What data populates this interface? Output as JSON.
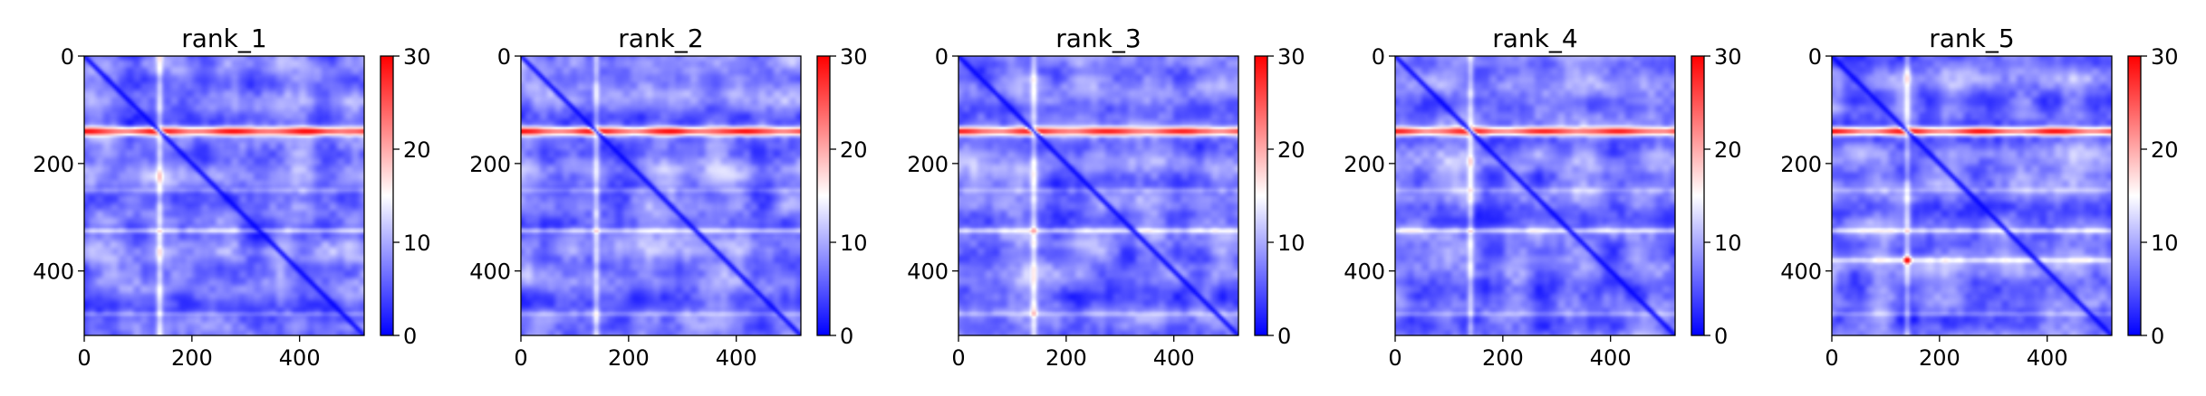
{
  "chart_data": [
    {
      "type": "heatmap",
      "title": "rank_1",
      "x_ticks": [
        0,
        200,
        400
      ],
      "y_ticks": [
        0,
        200,
        400
      ],
      "xlim": [
        0,
        520
      ],
      "ylim": [
        520,
        0
      ],
      "colorbar": {
        "cmap": "bwr",
        "vmin": 0,
        "vmax": 30,
        "ticks": [
          0,
          10,
          20,
          30
        ]
      },
      "features": {
        "diagonal": "low",
        "red_band_row": 140,
        "red_band_peak": 30,
        "mid_row": 325,
        "white_column": 140,
        "base_level": 7,
        "speckle_row": null
      }
    },
    {
      "type": "heatmap",
      "title": "rank_2",
      "x_ticks": [
        0,
        200,
        400
      ],
      "y_ticks": [
        0,
        200,
        400
      ],
      "xlim": [
        0,
        520
      ],
      "ylim": [
        520,
        0
      ],
      "colorbar": {
        "cmap": "bwr",
        "vmin": 0,
        "vmax": 30,
        "ticks": [
          0,
          10,
          20,
          30
        ]
      },
      "features": {
        "diagonal": "low",
        "red_band_row": 140,
        "red_band_peak": 30,
        "mid_row": 325,
        "white_column": 140,
        "base_level": 7,
        "speckle_row": null
      }
    },
    {
      "type": "heatmap",
      "title": "rank_3",
      "x_ticks": [
        0,
        200,
        400
      ],
      "y_ticks": [
        0,
        200,
        400
      ],
      "xlim": [
        0,
        520
      ],
      "ylim": [
        520,
        0
      ],
      "colorbar": {
        "cmap": "bwr",
        "vmin": 0,
        "vmax": 30,
        "ticks": [
          0,
          10,
          20,
          30
        ]
      },
      "features": {
        "diagonal": "low",
        "red_band_row": 140,
        "red_band_peak": 29,
        "mid_row": 325,
        "white_column": 140,
        "base_level": 7,
        "speckle_row": null
      }
    },
    {
      "type": "heatmap",
      "title": "rank_4",
      "x_ticks": [
        0,
        200,
        400
      ],
      "y_ticks": [
        0,
        200,
        400
      ],
      "xlim": [
        0,
        520
      ],
      "ylim": [
        520,
        0
      ],
      "colorbar": {
        "cmap": "bwr",
        "vmin": 0,
        "vmax": 30,
        "ticks": [
          0,
          10,
          20,
          30
        ]
      },
      "features": {
        "diagonal": "low",
        "red_band_row": 140,
        "red_band_peak": 29,
        "mid_row": 325,
        "white_column": 140,
        "base_level": 7,
        "speckle_row": null
      }
    },
    {
      "type": "heatmap",
      "title": "rank_5",
      "x_ticks": [
        0,
        200,
        400
      ],
      "y_ticks": [
        0,
        200,
        400
      ],
      "xlim": [
        0,
        520
      ],
      "ylim": [
        520,
        0
      ],
      "colorbar": {
        "cmap": "bwr",
        "vmin": 0,
        "vmax": 30,
        "ticks": [
          0,
          10,
          20,
          30
        ]
      },
      "features": {
        "diagonal": "low",
        "red_band_row": 140,
        "red_band_peak": 30,
        "mid_row": 325,
        "white_column": 140,
        "base_level": 7,
        "speckle_row": 380
      }
    }
  ]
}
